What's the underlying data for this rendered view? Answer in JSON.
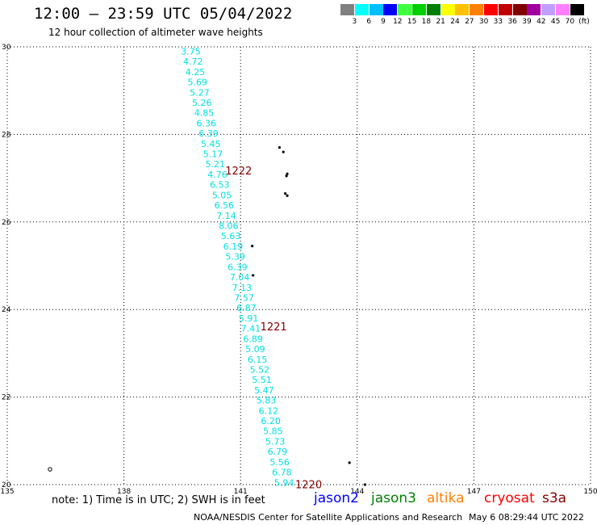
{
  "header": {
    "title": "12:00 – 23:59 UTC 05/04/2022",
    "subtitle": "12 hour collection of altimeter wave heights"
  },
  "color_scale": {
    "labels": [
      "3",
      "6",
      "9",
      "12",
      "15",
      "18",
      "21",
      "24",
      "27",
      "30",
      "33",
      "36",
      "39",
      "42",
      "45",
      "70"
    ],
    "unit": "(ft)",
    "colors": [
      "#808080",
      "#00ffff",
      "#00c0ff",
      "#0000ff",
      "#40ff40",
      "#00d000",
      "#008000",
      "#ffff00",
      "#ffc000",
      "#ff8000",
      "#ff0000",
      "#c00000",
      "#800000",
      "#a000a0",
      "#c0a0ff",
      "#ff80ff",
      "#000000"
    ]
  },
  "axes": {
    "x_ticks": [
      "135",
      "138",
      "141",
      "144",
      "147",
      "150"
    ],
    "y_ticks": [
      "20",
      "22",
      "24",
      "26",
      "28",
      "30"
    ],
    "x_range": [
      135,
      150
    ],
    "y_range": [
      20,
      30
    ]
  },
  "track": {
    "color": "#00e0e0",
    "values": [
      "3.75",
      "4.72",
      "4.25",
      "5.69",
      "5.27",
      "5.26",
      "4.85",
      "6.36",
      "6.39",
      "5.45",
      "5.17",
      "5.21",
      "4.76",
      "6.53",
      "5.05",
      "6.56",
      "7.14",
      "8.06",
      "5.63",
      "6.19",
      "5.39",
      "6.39",
      "7.04",
      "7.13",
      "7.57",
      "6.87",
      "5.91",
      "7.41",
      "6.89",
      "5.09",
      "6.15",
      "5.52",
      "5.51",
      "5.47",
      "5.83",
      "6.12",
      "6.20",
      "5.85",
      "5.73",
      "6.79",
      "5.56",
      "6.78",
      "5.94"
    ],
    "lon_start": 139.72,
    "lat_start": 29.9,
    "lon_end": 142.12,
    "lat_end": 20.05
  },
  "time_labels": [
    {
      "text": "1222",
      "lon": 140.95,
      "lat": 27.18
    },
    {
      "text": "1221",
      "lon": 141.85,
      "lat": 23.62
    },
    {
      "text": "1220",
      "lon": 142.75,
      "lat": 20.01
    }
  ],
  "time_label_color": "#800000",
  "islands": [
    {
      "lon": 142.0,
      "lat": 27.7
    },
    {
      "lon": 142.1,
      "lat": 27.6
    },
    {
      "lon": 142.2,
      "lat": 27.1
    },
    {
      "lon": 142.18,
      "lat": 27.05
    },
    {
      "lon": 142.15,
      "lat": 26.65
    },
    {
      "lon": 142.2,
      "lat": 26.6
    },
    {
      "lon": 141.3,
      "lat": 25.45
    },
    {
      "lon": 141.32,
      "lat": 24.78
    },
    {
      "lon": 143.8,
      "lat": 20.5
    },
    {
      "lon": 144.2,
      "lat": 20.0
    }
  ],
  "open_marker": {
    "lon": 136.1,
    "lat": 20.35
  },
  "footer": {
    "note": "note: 1) Time is in UTC; 2) SWH is in feet",
    "satellites": [
      {
        "name": "jason2",
        "color": "#0000ff"
      },
      {
        "name": "jason3",
        "color": "#008000"
      },
      {
        "name": "altika",
        "color": "#ff8000"
      },
      {
        "name": "cryosat",
        "color": "#ff0000"
      },
      {
        "name": "s3a",
        "color": "#800000"
      }
    ],
    "credit": "NOAA/NESDIS Center for Satellite Applications and Research",
    "timestamp": "May  6 08:29:44 UTC 2022"
  }
}
